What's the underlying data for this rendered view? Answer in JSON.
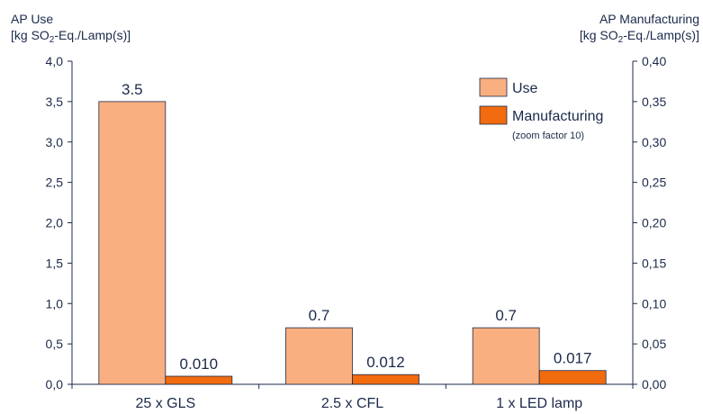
{
  "chart_data": {
    "type": "bar",
    "categories": [
      "25 x GLS",
      "2.5 x CFL",
      "1 x LED lamp"
    ],
    "series": [
      {
        "name": "Use",
        "axis": "left",
        "values": [
          3.5,
          0.7,
          0.7
        ],
        "labels": [
          "3.5",
          "0.7",
          "0.7"
        ],
        "color": "#F9AF80"
      },
      {
        "name": "Manufacturing",
        "axis": "right",
        "values": [
          0.01,
          0.012,
          0.017
        ],
        "labels": [
          "0.010",
          "0.012",
          "0.017"
        ],
        "color": "#F26B0F"
      }
    ],
    "left_axis": {
      "title_prefix": "AP Use",
      "unit_pre": "[kg SO",
      "unit_sub": "2",
      "unit_post": "-Eq./Lamp(s)]",
      "ylim": [
        0,
        4.0
      ],
      "ticks": [
        0.0,
        0.5,
        1.0,
        1.5,
        2.0,
        2.5,
        3.0,
        3.5,
        4.0
      ],
      "tick_labels": [
        "0,0",
        "0,5",
        "1,0",
        "1,5",
        "2,0",
        "2,5",
        "3,0",
        "3,5",
        "4,0"
      ]
    },
    "right_axis": {
      "title_prefix": "AP Manufacturing",
      "unit_pre": "[kg SO",
      "unit_sub": "2",
      "unit_post": "-Eq./Lamp(s)]",
      "ylim": [
        0,
        0.4
      ],
      "ticks": [
        0.0,
        0.05,
        0.1,
        0.15,
        0.2,
        0.25,
        0.3,
        0.35,
        0.4
      ],
      "tick_labels": [
        "0,00",
        "0,05",
        "0,10",
        "0,15",
        "0,20",
        "0,25",
        "0,30",
        "0,35",
        "0,40"
      ]
    },
    "legend": {
      "position": "top-right",
      "note": "(zoom factor 10)"
    },
    "grid": false
  },
  "colors": {
    "axis": "#1b2a4a",
    "use": "#F9AF80",
    "manufacturing": "#F26B0F",
    "bar_edge": "#1b2a4a"
  }
}
